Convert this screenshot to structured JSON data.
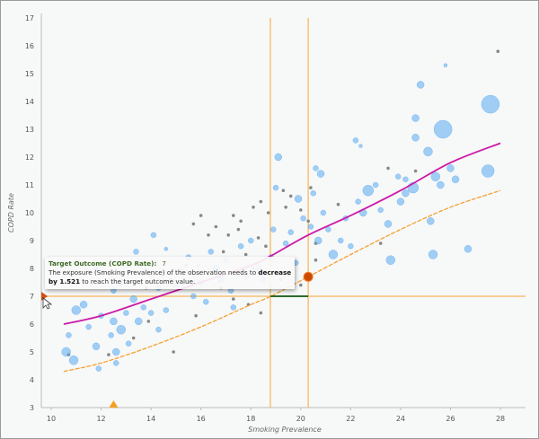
{
  "chart_data": {
    "type": "scatter",
    "xlabel": "Smoking Prevalence",
    "ylabel": "COPD Rate",
    "xlim": [
      9.6,
      29
    ],
    "ylim": [
      3,
      17
    ],
    "x_ticks": [
      10,
      12,
      14,
      16,
      18,
      20,
      22,
      24,
      26,
      28
    ],
    "y_ticks": [
      3,
      4,
      5,
      6,
      7,
      8,
      9,
      10,
      11,
      12,
      13,
      14,
      15,
      16,
      17
    ],
    "grid": false,
    "colors": {
      "bubble": "#5aaaf0",
      "gray_point": "#888888",
      "fit_line": "#cc1aa8",
      "target_line": "#f5a030",
      "guide": "#f8c070",
      "change_segment": "#2e6b2e",
      "selected_point": "#cc4a00"
    },
    "bubbles": [
      [
        10.6,
        5.0,
        5
      ],
      [
        10.9,
        4.7,
        5
      ],
      [
        11.0,
        6.5,
        5
      ],
      [
        11.3,
        6.7,
        4
      ],
      [
        10.7,
        5.6,
        3
      ],
      [
        11.5,
        5.9,
        3
      ],
      [
        11.8,
        5.2,
        4
      ],
      [
        11.9,
        4.4,
        3
      ],
      [
        12.0,
        6.3,
        3
      ],
      [
        12.4,
        5.6,
        3
      ],
      [
        12.6,
        5.0,
        4
      ],
      [
        12.6,
        4.6,
        3
      ],
      [
        12.5,
        6.1,
        4
      ],
      [
        12.8,
        5.8,
        5
      ],
      [
        13.0,
        6.4,
        3
      ],
      [
        13.1,
        5.3,
        3
      ],
      [
        13.3,
        6.9,
        4
      ],
      [
        13.5,
        6.1,
        4
      ],
      [
        13.7,
        6.6,
        3
      ],
      [
        14.0,
        6.4,
        3
      ],
      [
        14.3,
        5.8,
        3
      ],
      [
        14.3,
        7.3,
        3
      ],
      [
        14.6,
        6.5,
        3
      ],
      [
        14.0,
        7.8,
        3
      ],
      [
        13.4,
        8.6,
        3
      ],
      [
        12.8,
        7.5,
        4
      ],
      [
        14.6,
        8.7,
        2
      ],
      [
        14.1,
        9.2,
        3
      ],
      [
        11.8,
        8.0,
        4
      ],
      [
        12.5,
        7.2,
        3
      ],
      [
        15.0,
        7.4,
        3
      ],
      [
        15.2,
        7.9,
        3
      ],
      [
        15.5,
        8.4,
        3
      ],
      [
        15.7,
        7.0,
        3
      ],
      [
        15.9,
        8.1,
        2
      ],
      [
        16.0,
        7.5,
        3
      ],
      [
        16.2,
        6.8,
        3
      ],
      [
        16.4,
        8.6,
        3
      ],
      [
        16.6,
        8.0,
        4
      ],
      [
        16.8,
        7.6,
        4
      ],
      [
        17.0,
        8.3,
        3
      ],
      [
        17.2,
        7.2,
        3
      ],
      [
        17.3,
        6.6,
        3
      ],
      [
        17.6,
        8.8,
        3
      ],
      [
        17.8,
        7.7,
        3
      ],
      [
        18.0,
        9.0,
        3
      ],
      [
        18.3,
        8.0,
        3
      ],
      [
        18.5,
        7.6,
        3
      ],
      [
        18.8,
        8.4,
        3
      ],
      [
        18.9,
        9.4,
        3
      ],
      [
        19.0,
        10.9,
        3
      ],
      [
        19.1,
        12.0,
        4
      ],
      [
        19.4,
        8.9,
        3
      ],
      [
        19.6,
        9.3,
        3
      ],
      [
        19.8,
        8.2,
        3
      ],
      [
        19.9,
        10.5,
        4
      ],
      [
        20.1,
        9.8,
        3
      ],
      [
        20.4,
        9.5,
        3
      ],
      [
        20.7,
        9.0,
        4
      ],
      [
        20.9,
        10.0,
        3
      ],
      [
        20.5,
        10.7,
        3
      ],
      [
        21.1,
        9.4,
        3
      ],
      [
        21.3,
        8.5,
        5
      ],
      [
        21.6,
        9.0,
        3
      ],
      [
        21.8,
        9.8,
        3
      ],
      [
        22.0,
        8.8,
        3
      ],
      [
        22.3,
        10.4,
        3
      ],
      [
        22.5,
        10.0,
        4
      ],
      [
        22.7,
        10.8,
        6
      ],
      [
        23.0,
        11.0,
        3
      ],
      [
        23.2,
        10.1,
        3
      ],
      [
        23.5,
        9.6,
        4
      ],
      [
        23.6,
        8.3,
        5
      ],
      [
        23.9,
        11.3,
        3
      ],
      [
        24.0,
        10.4,
        4
      ],
      [
        24.2,
        11.2,
        3
      ],
      [
        24.5,
        10.9,
        6
      ],
      [
        24.2,
        10.7,
        4
      ],
      [
        22.2,
        12.6,
        3
      ],
      [
        22.4,
        12.4,
        2
      ],
      [
        20.6,
        11.6,
        3
      ],
      [
        20.8,
        11.4,
        4
      ],
      [
        24.6,
        12.7,
        4
      ],
      [
        25.1,
        12.2,
        5
      ],
      [
        25.4,
        11.3,
        5
      ],
      [
        25.6,
        11.0,
        4
      ],
      [
        25.3,
        8.5,
        5
      ],
      [
        25.2,
        9.7,
        4
      ],
      [
        26.7,
        8.7,
        4
      ],
      [
        24.6,
        13.4,
        4
      ],
      [
        24.8,
        14.6,
        4
      ],
      [
        25.8,
        15.3,
        2
      ],
      [
        27.5,
        11.5,
        7
      ],
      [
        26.0,
        11.6,
        4
      ],
      [
        26.2,
        11.2,
        4
      ],
      [
        25.7,
        13.0,
        10
      ],
      [
        27.6,
        13.9,
        10
      ]
    ],
    "gray_points": [
      [
        18.1,
        10.2
      ],
      [
        18.4,
        10.4
      ],
      [
        18.7,
        10.0
      ],
      [
        17.6,
        9.7
      ],
      [
        17.3,
        9.9
      ],
      [
        17.5,
        9.4
      ],
      [
        18.3,
        9.1
      ],
      [
        18.6,
        8.8
      ],
      [
        16.6,
        9.5
      ],
      [
        16.0,
        9.9
      ],
      [
        16.3,
        9.2
      ],
      [
        15.7,
        9.6
      ],
      [
        15.4,
        8.1
      ],
      [
        16.9,
        8.6
      ],
      [
        17.1,
        9.2
      ],
      [
        17.8,
        8.5
      ],
      [
        18.1,
        8.0
      ],
      [
        19.6,
        10.6
      ],
      [
        20.0,
        10.1
      ],
      [
        20.3,
        9.7
      ],
      [
        19.4,
        10.2
      ],
      [
        20.6,
        8.9
      ],
      [
        21.5,
        10.3
      ],
      [
        23.2,
        8.9
      ],
      [
        24.6,
        11.5
      ],
      [
        18.4,
        6.4
      ],
      [
        17.3,
        6.9
      ],
      [
        16.8,
        7.3
      ],
      [
        14.9,
        5.0
      ],
      [
        13.9,
        6.1
      ],
      [
        12.3,
        4.9
      ],
      [
        10.7,
        4.9
      ],
      [
        19.2,
        7.6
      ],
      [
        20.0,
        7.4
      ],
      [
        20.6,
        8.3
      ],
      [
        14.8,
        7.6
      ],
      [
        13.8,
        7.3
      ],
      [
        15.8,
        6.3
      ],
      [
        19.3,
        10.8
      ],
      [
        20.4,
        10.9
      ],
      [
        23.5,
        11.6
      ],
      [
        27.9,
        15.8
      ],
      [
        13.3,
        5.5
      ],
      [
        16.1,
        7.9
      ],
      [
        17.9,
        6.7
      ]
    ],
    "fit_line": [
      [
        10.5,
        6.0
      ],
      [
        12,
        6.3
      ],
      [
        14,
        6.9
      ],
      [
        16,
        7.5
      ],
      [
        18,
        8.1
      ],
      [
        18.8,
        8.45
      ],
      [
        20.3,
        9.2
      ],
      [
        22,
        9.9
      ],
      [
        24,
        10.8
      ],
      [
        26,
        11.8
      ],
      [
        28,
        12.5
      ]
    ],
    "target_line": [
      [
        10.5,
        4.3
      ],
      [
        12,
        4.6
      ],
      [
        14,
        5.2
      ],
      [
        16,
        5.9
      ],
      [
        18,
        6.7
      ],
      [
        18.8,
        7.0
      ],
      [
        20.3,
        7.7
      ],
      [
        22,
        8.5
      ],
      [
        24,
        9.4
      ],
      [
        26,
        10.2
      ],
      [
        28,
        10.8
      ]
    ],
    "target_outcome": 7,
    "observation": {
      "x": 20.3,
      "y": 7.7
    },
    "adjusted_exposure": 18.78,
    "x_marker": 12.5
  },
  "tooltip": {
    "title": "Target Outcome (COPD Rate):",
    "value": "7",
    "line1": "The exposure (Smoking Prevalence) of the observation needs to",
    "bold1": "decrease",
    "bold2": "by 1.521",
    "line2": "to reach the target outcome value."
  }
}
